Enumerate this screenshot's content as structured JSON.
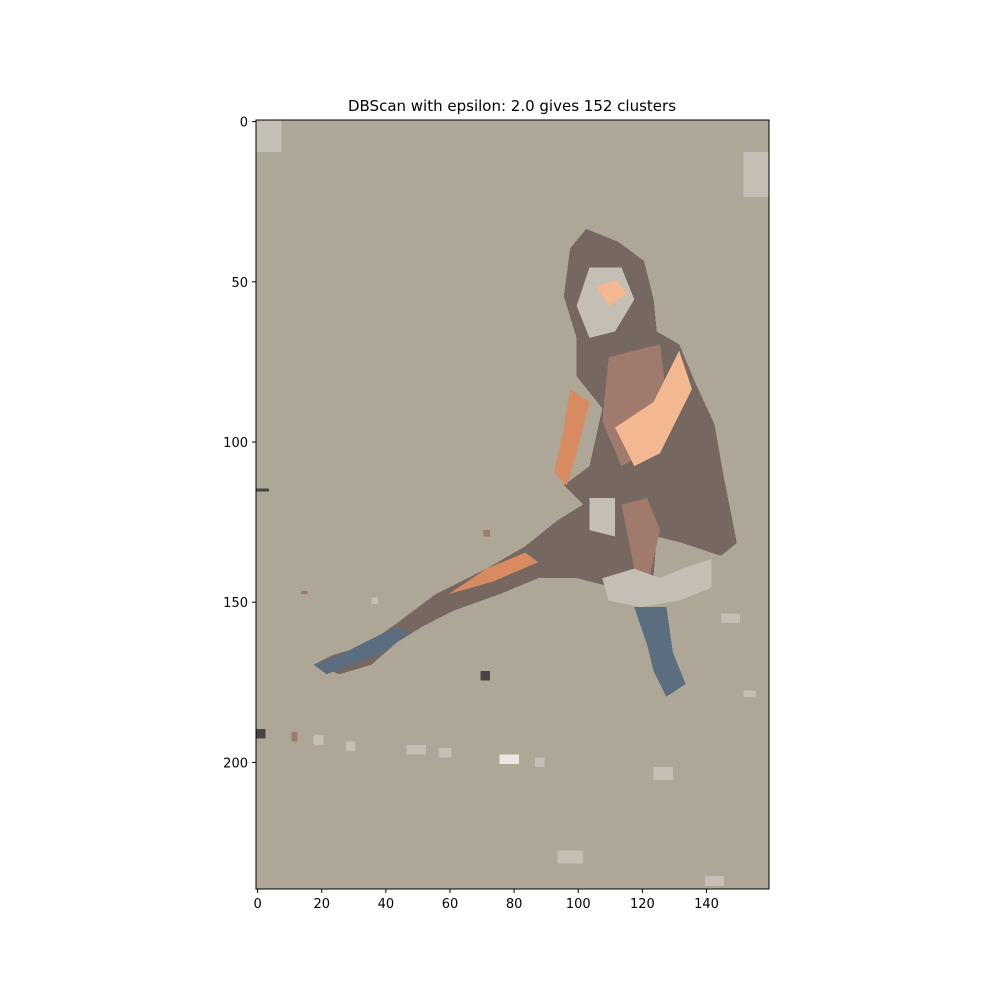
{
  "chart_data": {
    "type": "heatmap",
    "title": "DBScan with epsilon: 2.0 gives 152 clusters",
    "xlabel": "",
    "ylabel": "",
    "xlim": [
      -0.5,
      159.5
    ],
    "ylim": [
      239.5,
      -0.5
    ],
    "x_ticks": [
      0,
      20,
      40,
      60,
      80,
      100,
      120,
      140
    ],
    "y_ticks": [
      0,
      50,
      100,
      150,
      200
    ],
    "image_width": 160,
    "image_height": 240,
    "grid": false,
    "background_color": "#aea697",
    "palette": {
      "dark_brown": "#766860",
      "mauve": "#a07a6d",
      "peach": "#f3b892",
      "orange": "#d88a60",
      "blue": "#5c6d80",
      "light_gray": "#c4beb4",
      "white": "#ece6de",
      "charcoal": "#4a4544"
    },
    "regions": [
      {
        "color": "dark_brown",
        "points": [
          [
            103,
            34
          ],
          [
            113,
            38
          ],
          [
            121,
            44
          ],
          [
            124,
            56
          ],
          [
            125,
            66
          ],
          [
            132,
            70
          ],
          [
            137,
            82
          ],
          [
            143,
            95
          ],
          [
            146,
            112
          ],
          [
            150,
            132
          ],
          [
            145,
            136
          ],
          [
            133,
            132
          ],
          [
            125,
            130
          ],
          [
            124,
            142
          ],
          [
            121,
            150
          ],
          [
            112,
            146
          ],
          [
            100,
            143
          ],
          [
            88,
            143
          ],
          [
            76,
            148
          ],
          [
            62,
            153
          ],
          [
            52,
            158
          ],
          [
            44,
            163
          ],
          [
            36,
            170
          ],
          [
            26,
            173
          ],
          [
            18,
            170
          ],
          [
            24,
            167
          ],
          [
            34,
            164
          ],
          [
            44,
            157
          ],
          [
            56,
            148
          ],
          [
            72,
            140
          ],
          [
            84,
            133
          ],
          [
            94,
            125
          ],
          [
            102,
            120
          ],
          [
            96,
            114
          ],
          [
            104,
            108
          ],
          [
            108,
            90
          ],
          [
            100,
            80
          ],
          [
            100,
            68
          ],
          [
            96,
            55
          ],
          [
            98,
            40
          ]
        ]
      },
      {
        "color": "light_gray",
        "points": [
          [
            104,
            46
          ],
          [
            114,
            46
          ],
          [
            118,
            56
          ],
          [
            112,
            66
          ],
          [
            104,
            68
          ],
          [
            100,
            58
          ]
        ]
      },
      {
        "color": "mauve",
        "points": [
          [
            110,
            74
          ],
          [
            126,
            70
          ],
          [
            128,
            86
          ],
          [
            122,
            104
          ],
          [
            114,
            108
          ],
          [
            108,
            94
          ]
        ]
      },
      {
        "color": "peach",
        "points": [
          [
            112,
            96
          ],
          [
            124,
            88
          ],
          [
            132,
            72
          ],
          [
            136,
            84
          ],
          [
            126,
            104
          ],
          [
            118,
            108
          ]
        ]
      },
      {
        "color": "orange",
        "points": [
          [
            98,
            84
          ],
          [
            104,
            88
          ],
          [
            100,
            104
          ],
          [
            97,
            114
          ],
          [
            93,
            110
          ],
          [
            96,
            96
          ]
        ]
      },
      {
        "color": "peach",
        "points": [
          [
            106,
            52
          ],
          [
            112,
            50
          ],
          [
            116,
            54
          ],
          [
            110,
            58
          ]
        ]
      },
      {
        "color": "orange",
        "points": [
          [
            60,
            148
          ],
          [
            72,
            140
          ],
          [
            84,
            135
          ],
          [
            88,
            138
          ],
          [
            74,
            144
          ]
        ]
      },
      {
        "color": "mauve",
        "points": [
          [
            114,
            120
          ],
          [
            122,
            118
          ],
          [
            126,
            128
          ],
          [
            122,
            146
          ],
          [
            118,
            140
          ]
        ]
      },
      {
        "color": "light_gray",
        "points": [
          [
            104,
            118
          ],
          [
            112,
            118
          ],
          [
            112,
            130
          ],
          [
            104,
            128
          ]
        ]
      },
      {
        "color": "light_gray",
        "points": [
          [
            108,
            143
          ],
          [
            118,
            140
          ],
          [
            126,
            143
          ],
          [
            133,
            140
          ],
          [
            142,
            137
          ],
          [
            142,
            146
          ],
          [
            132,
            150
          ],
          [
            120,
            152
          ],
          [
            110,
            150
          ]
        ]
      },
      {
        "color": "blue",
        "points": [
          [
            118,
            152
          ],
          [
            128,
            152
          ],
          [
            130,
            166
          ],
          [
            134,
            176
          ],
          [
            128,
            180
          ],
          [
            124,
            172
          ],
          [
            122,
            164
          ]
        ]
      },
      {
        "color": "blue",
        "points": [
          [
            18,
            170
          ],
          [
            28,
            166
          ],
          [
            36,
            162
          ],
          [
            44,
            158
          ],
          [
            48,
            160
          ],
          [
            40,
            166
          ],
          [
            30,
            170
          ],
          [
            22,
            173
          ]
        ]
      }
    ],
    "specks": [
      {
        "x": 0,
        "y": 0,
        "w": 8,
        "h": 10,
        "color": "light_gray"
      },
      {
        "x": 152,
        "y": 10,
        "w": 8,
        "h": 14,
        "color": "light_gray"
      },
      {
        "x": 0,
        "y": 190,
        "w": 3,
        "h": 3,
        "color": "charcoal"
      },
      {
        "x": 11,
        "y": 191,
        "w": 2,
        "h": 3,
        "color": "mauve"
      },
      {
        "x": 70,
        "y": 172,
        "w": 3,
        "h": 3,
        "color": "charcoal"
      },
      {
        "x": 71,
        "y": 128,
        "w": 2,
        "h": 2,
        "color": "mauve"
      },
      {
        "x": 0,
        "y": 115,
        "w": 4,
        "h": 1,
        "color": "charcoal"
      },
      {
        "x": 18,
        "y": 192,
        "w": 3,
        "h": 3,
        "color": "light_gray"
      },
      {
        "x": 28,
        "y": 194,
        "w": 3,
        "h": 3,
        "color": "light_gray"
      },
      {
        "x": 47,
        "y": 195,
        "w": 6,
        "h": 3,
        "color": "light_gray"
      },
      {
        "x": 57,
        "y": 196,
        "w": 4,
        "h": 3,
        "color": "light_gray"
      },
      {
        "x": 76,
        "y": 198,
        "w": 6,
        "h": 3,
        "color": "white"
      },
      {
        "x": 87,
        "y": 199,
        "w": 3,
        "h": 3,
        "color": "light_gray"
      },
      {
        "x": 94,
        "y": 228,
        "w": 8,
        "h": 4,
        "color": "light_gray"
      },
      {
        "x": 140,
        "y": 236,
        "w": 6,
        "h": 3,
        "color": "light_gray"
      },
      {
        "x": 124,
        "y": 202,
        "w": 6,
        "h": 4,
        "color": "light_gray"
      },
      {
        "x": 145,
        "y": 154,
        "w": 6,
        "h": 3,
        "color": "light_gray"
      },
      {
        "x": 152,
        "y": 178,
        "w": 4,
        "h": 2,
        "color": "light_gray"
      },
      {
        "x": 14,
        "y": 147,
        "w": 2,
        "h": 1,
        "color": "mauve"
      },
      {
        "x": 36,
        "y": 149,
        "w": 2,
        "h": 2,
        "color": "light_gray"
      }
    ]
  }
}
